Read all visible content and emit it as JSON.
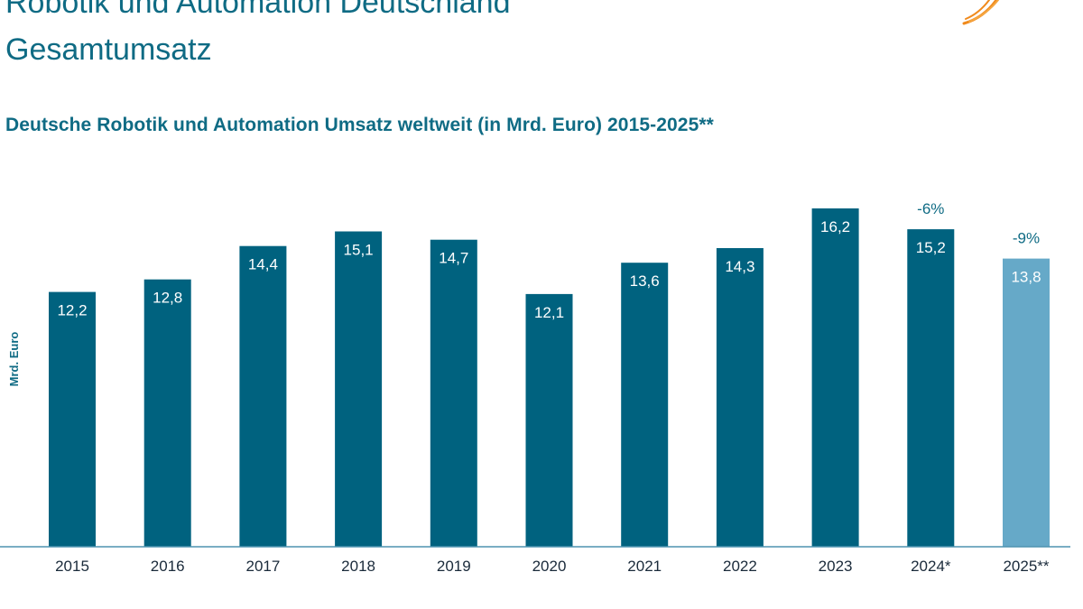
{
  "header": {
    "title_line_1": "Robotik und Automation Deutschland",
    "title_line_2": "Gesamtumsatz",
    "brand_color": "#0f6b84",
    "logo_icon": "orange-swoosh-logo-icon",
    "logo_color": "#f08a1c"
  },
  "chart_data": {
    "type": "bar",
    "title": "Deutsche Robotik und Automation Umsatz weltweit (in Mrd. Euro) 2015-2025**",
    "xlabel": "",
    "ylabel": "Mrd. Euro",
    "categories": [
      "2015",
      "2016",
      "2017",
      "2018",
      "2019",
      "2020",
      "2021",
      "2022",
      "2023",
      "2024*",
      "2025**"
    ],
    "values": [
      12.2,
      12.8,
      14.4,
      15.1,
      14.7,
      12.1,
      13.6,
      14.3,
      16.2,
      15.2,
      13.8
    ],
    "value_labels": [
      "12,2",
      "12,8",
      "14,4",
      "15,1",
      "14,7",
      "12,1",
      "13,6",
      "14,3",
      "16,2",
      "15,2",
      "13,8"
    ],
    "annotations": [
      {
        "category": "2024*",
        "text": "-6%"
      },
      {
        "category": "2025**",
        "text": "-9%"
      }
    ],
    "ylim": [
      0,
      17
    ],
    "grid": false,
    "legend": "none",
    "colors": {
      "bar": "#00627f",
      "bar_forecast": "#66a9c8",
      "axis": "#4f93b0",
      "tick_label": "#1a2a3a",
      "value_label": "#ffffff",
      "annotation": "#0f6b84"
    },
    "forecast_categories": [
      "2025**"
    ]
  }
}
